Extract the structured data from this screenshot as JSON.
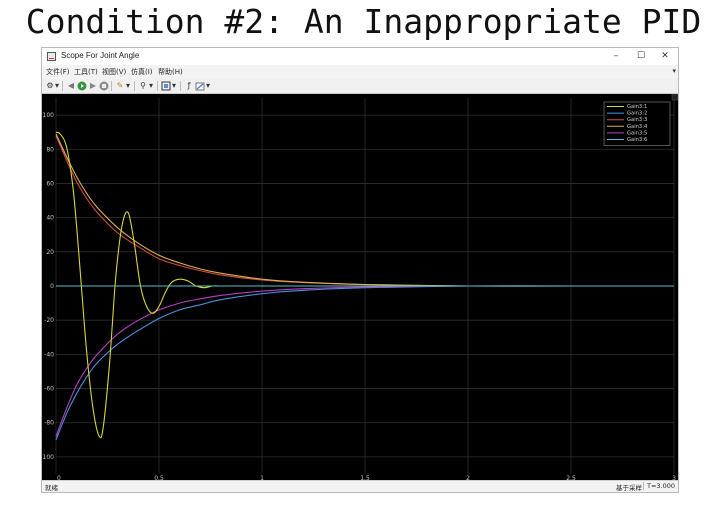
{
  "slide": {
    "title": "Condition #2: An Inappropriate PID"
  },
  "window": {
    "title": "Scope For Joint Angle",
    "controls": {
      "minimize": "–",
      "maximize": "☐",
      "close": "✕"
    }
  },
  "menu": {
    "items": [
      "文件(F)",
      "工具(T)",
      "视图(V)",
      "仿真(I)",
      "帮助(H)"
    ],
    "overflow": "▾"
  },
  "toolbar": {
    "icons": [
      "settings-icon",
      "dropdown-icon",
      "step-back-icon",
      "run-icon",
      "step-forward-icon",
      "stop-icon",
      "highlight-icon",
      "dropdown-icon",
      "zoom-icon",
      "dropdown-icon",
      "fit-icon",
      "dropdown-icon",
      "trigger-icon",
      "edit-icon",
      "dropdown-icon"
    ]
  },
  "status": {
    "left": "就绪",
    "mode": "基于采样",
    "time": "T=3.000"
  },
  "chart_data": {
    "type": "line",
    "xlim": [
      0,
      3
    ],
    "ylim": [
      -110,
      110
    ],
    "xticks": [
      0,
      0.5,
      1,
      1.5,
      2,
      2.5,
      3
    ],
    "xtick_labels": [
      "0",
      "0.5",
      "1",
      "1.5",
      "2",
      "2.5",
      "3"
    ],
    "yticks": [
      -100,
      -80,
      -60,
      -40,
      -20,
      0,
      20,
      40,
      60,
      80,
      100
    ],
    "ytick_labels": [
      "-100",
      "-80",
      "-60",
      "-40",
      "-20",
      "0",
      "20",
      "40",
      "60",
      "80",
      "100"
    ],
    "grid": true,
    "legend_position": "top-right",
    "series": [
      {
        "name": "Gain3:1",
        "color": "#d6d63a",
        "x": [
          0,
          0.02,
          0.05,
          0.08,
          0.1,
          0.12,
          0.15,
          0.18,
          0.21,
          0.23,
          0.26,
          0.29,
          0.32,
          0.35,
          0.38,
          0.41,
          0.44,
          0.47,
          0.5,
          0.53,
          0.56,
          0.6,
          0.64,
          0.68,
          0.72,
          0.76,
          0.8,
          0.9,
          1.0,
          1.2,
          1.5,
          2.0,
          2.5,
          3.0
        ],
        "y": [
          90,
          89,
          82,
          60,
          35,
          5,
          -40,
          -72,
          -88,
          -82,
          -45,
          5,
          35,
          43,
          25,
          0,
          -12,
          -16,
          -12,
          -4,
          2,
          4,
          3,
          0,
          -1,
          0,
          0,
          0,
          0,
          0,
          0,
          0,
          0,
          0
        ]
      },
      {
        "name": "Gain3:2",
        "color": "#4d8fdc",
        "x": [
          0,
          0.05,
          0.1,
          0.15,
          0.2,
          0.3,
          0.4,
          0.5,
          0.6,
          0.7,
          0.8,
          1.0,
          1.2,
          1.5,
          2.0,
          2.5,
          3.0
        ],
        "y": [
          -90,
          -75,
          -63,
          -53,
          -45,
          -34,
          -26,
          -19,
          -14,
          -11,
          -8,
          -4.5,
          -2.5,
          -1,
          0,
          0,
          0
        ]
      },
      {
        "name": "Gain3:3",
        "color": "#d04a4a",
        "x": [
          0,
          0.05,
          0.1,
          0.15,
          0.2,
          0.3,
          0.4,
          0.5,
          0.6,
          0.7,
          0.8,
          1.0,
          1.2,
          1.5,
          2.0,
          2.5,
          3.0
        ],
        "y": [
          88,
          74,
          61,
          51,
          43,
          31,
          23,
          16,
          12,
          9,
          6.5,
          3.5,
          2,
          0.8,
          0,
          0,
          0
        ]
      },
      {
        "name": "Gain3:4",
        "color": "#d9b24a",
        "x": [
          0,
          0.05,
          0.1,
          0.15,
          0.2,
          0.3,
          0.4,
          0.5,
          0.6,
          0.7,
          0.8,
          1.0,
          1.2,
          1.5,
          2.0,
          2.5,
          3.0
        ],
        "y": [
          89,
          76,
          64,
          54,
          46,
          34,
          25,
          18,
          13.5,
          10,
          7.5,
          4,
          2.2,
          0.9,
          0,
          0,
          0
        ]
      },
      {
        "name": "Gain3:5",
        "color": "#b440c0",
        "x": [
          0,
          0.05,
          0.1,
          0.15,
          0.2,
          0.3,
          0.4,
          0.5,
          0.6,
          0.7,
          0.8,
          1.0,
          1.2,
          1.5,
          2.0,
          2.5,
          3.0
        ],
        "y": [
          -88,
          -72,
          -58,
          -48,
          -40,
          -28,
          -20,
          -14,
          -10,
          -7.5,
          -5.5,
          -3,
          -1.6,
          -0.6,
          0,
          0,
          0
        ]
      },
      {
        "name": "Gain3:6",
        "color": "#4fc4cc",
        "x": [
          0,
          0.5,
          1.0,
          1.5,
          2.0,
          2.5,
          3.0
        ],
        "y": [
          0,
          0,
          0,
          0,
          0,
          0,
          0
        ]
      }
    ]
  }
}
